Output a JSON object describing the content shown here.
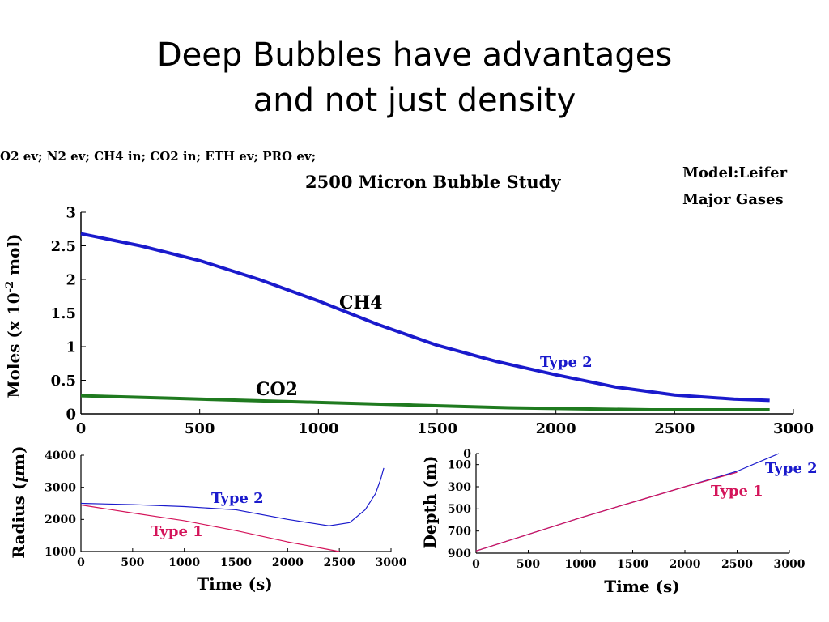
{
  "slide": {
    "title_line1": "Deep Bubbles have advantages",
    "title_line2": "and not just density"
  },
  "figure": {
    "gas_list": "O2 ev; N2 ev; CH4 in; CO2 in; ETH ev; PRO ev;",
    "study_title": "2500 Micron Bubble Study",
    "model_line1": "Model:Leifer",
    "model_line2": "Major Gases"
  },
  "colors": {
    "blue": "#1a1acc",
    "green": "#1f7a1f",
    "pink": "#d4145a"
  },
  "chart_data": [
    {
      "type": "line",
      "title": "2500 Micron Bubble Study",
      "xlabel": "",
      "ylabel": "Moles (x 10-2 mol)",
      "ylabel_main": "Moles (x 10",
      "ylabel_exp": "-2",
      "ylabel_tail": " mol)",
      "xlim": [
        0,
        3000
      ],
      "ylim": [
        0,
        3
      ],
      "xticks": [
        0,
        500,
        1000,
        1500,
        2000,
        2500,
        3000
      ],
      "yticks": [
        0,
        0.5,
        1,
        1.5,
        2,
        2.5,
        3
      ],
      "yticklabels": [
        "0",
        "0.5",
        "1",
        "1.5",
        "2",
        "2.5",
        "3"
      ],
      "series": [
        {
          "name": "CH4",
          "note": "Type 2",
          "x": [
            0,
            250,
            500,
            750,
            1000,
            1250,
            1500,
            1750,
            2000,
            2250,
            2500,
            2750,
            2900
          ],
          "values": [
            2.68,
            2.5,
            2.28,
            2.0,
            1.68,
            1.33,
            1.02,
            0.78,
            0.58,
            0.4,
            0.28,
            0.22,
            0.2
          ]
        },
        {
          "name": "CO2",
          "x": [
            0,
            200,
            400,
            600,
            800,
            1000,
            1200,
            1400,
            1600,
            1800,
            2000,
            2200,
            2400,
            2600,
            2900
          ],
          "values": [
            0.27,
            0.25,
            0.23,
            0.21,
            0.19,
            0.17,
            0.15,
            0.13,
            0.11,
            0.09,
            0.08,
            0.07,
            0.06,
            0.06,
            0.06
          ]
        }
      ]
    },
    {
      "type": "line",
      "title": "",
      "xlabel": "Time (s)",
      "ylabel_prefix": "Radius (",
      "ylabel_mu": "μ",
      "ylabel_suffix": "m)",
      "xlim": [
        0,
        3000
      ],
      "ylim": [
        1000,
        4000
      ],
      "xticks": [
        0,
        500,
        1000,
        1500,
        2000,
        2500,
        3000
      ],
      "yticks": [
        1000,
        2000,
        3000,
        4000
      ],
      "series": [
        {
          "name": "Type 2",
          "x": [
            0,
            500,
            1000,
            1500,
            2000,
            2400,
            2600,
            2750,
            2850,
            2900,
            2930
          ],
          "values": [
            2500,
            2460,
            2400,
            2300,
            2000,
            1800,
            1900,
            2300,
            2800,
            3250,
            3600
          ]
        },
        {
          "name": "Type 1",
          "x": [
            0,
            500,
            1000,
            1500,
            2000,
            2500
          ],
          "values": [
            2450,
            2200,
            1960,
            1650,
            1300,
            1000
          ]
        }
      ]
    },
    {
      "type": "line",
      "title": "",
      "xlabel": "Time (s)",
      "ylabel": "Depth (m)",
      "xlim": [
        0,
        3000
      ],
      "ylim": [
        900,
        0
      ],
      "xticks": [
        0,
        500,
        1000,
        1500,
        2000,
        2500,
        3000
      ],
      "yticks": [
        0,
        100,
        300,
        500,
        700,
        900
      ],
      "series": [
        {
          "name": "Type 2",
          "x": [
            0,
            500,
            1000,
            1500,
            2000,
            2500,
            2800,
            2900
          ],
          "values": [
            880,
            730,
            580,
            440,
            300,
            160,
            40,
            0
          ]
        },
        {
          "name": "Type 1",
          "x": [
            0,
            500,
            1000,
            1500,
            2000,
            2500
          ],
          "values": [
            880,
            730,
            580,
            440,
            300,
            170
          ]
        }
      ]
    }
  ]
}
